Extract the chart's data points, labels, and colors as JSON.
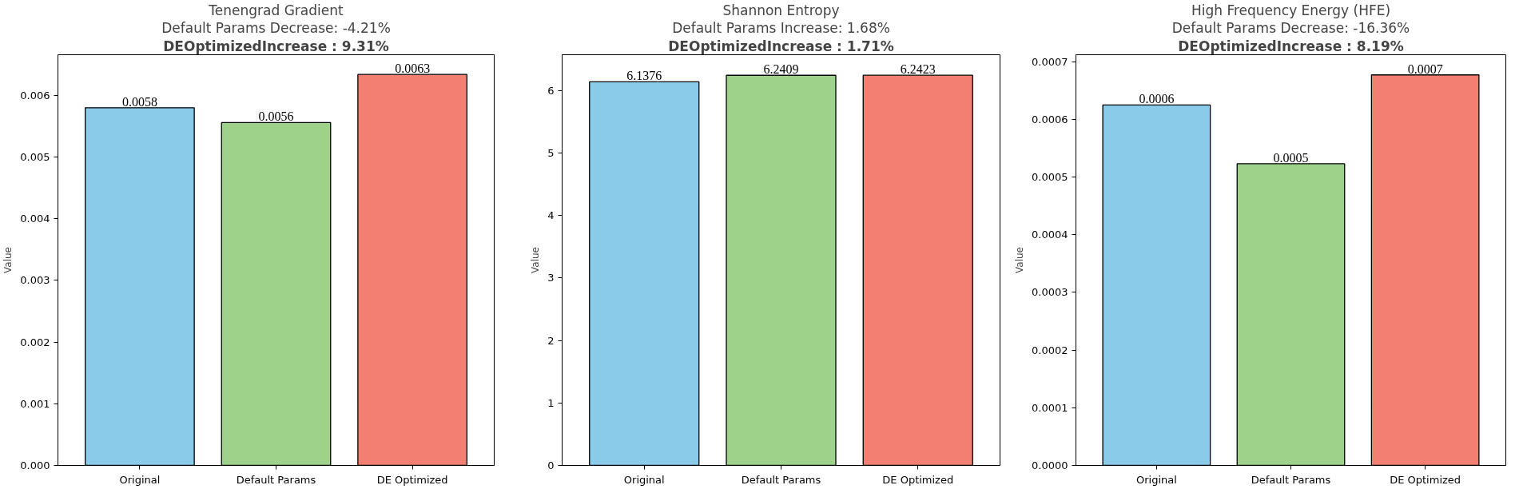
{
  "chart_data": [
    {
      "type": "bar",
      "title": "Tenengrad Gradient",
      "subtitle": "Default Params Decrease: -4.21%",
      "annotations": [
        "DEOptimizedIncrease : 9.31%"
      ],
      "ylabel": "Value",
      "categories": [
        "Original",
        "Default Params",
        "DE Optimized"
      ],
      "values": [
        0.0058,
        0.00556,
        0.00634
      ],
      "value_labels": [
        "0.0058",
        "0.0056",
        "0.0063"
      ],
      "colors": [
        "#89cbe8",
        "#9ed18a",
        "#f28072"
      ],
      "ylim": [
        0,
        0.00666
      ],
      "yticks": [
        {
          "value": 0,
          "label": "0.000"
        },
        {
          "value": 0.001,
          "label": "0.001"
        },
        {
          "value": 0.002,
          "label": "0.002"
        },
        {
          "value": 0.003,
          "label": "0.003"
        },
        {
          "value": 0.004,
          "label": "0.004"
        },
        {
          "value": 0.005,
          "label": "0.005"
        },
        {
          "value": 0.006,
          "label": "0.006"
        }
      ],
      "grid": false
    },
    {
      "type": "bar",
      "title": "Shannon Entropy",
      "subtitle": "Default Params Increase: 1.68%",
      "annotations": [
        "DEOptimizedIncrease : 1.71%"
      ],
      "ylabel": "Value",
      "categories": [
        "Original",
        "Default Params",
        "DE Optimized"
      ],
      "values": [
        6.1376,
        6.2409,
        6.2423
      ],
      "data_labels": true,
      "colors": [
        "#89cbe8",
        "#9ed18a",
        "#f28072"
      ],
      "ylim": [
        0,
        6.57
      ],
      "yticks": [
        0,
        1,
        2,
        3,
        4,
        5,
        6
      ],
      "grid": false
    },
    {
      "type": "bar",
      "title": "High Frequency Energy (HFE)",
      "subtitle": "Default Params Decrease: -16.36%",
      "annotations": [
        "DEOptimizedIncrease : 8.19%"
      ],
      "ylabel": "Value",
      "categories": [
        "Original",
        "Default Params",
        "DE Optimized"
      ],
      "values": [
        0.000625,
        0.000523,
        0.000677
      ],
      "value_labels": [
        "0.0006",
        "0.0005",
        "0.0007"
      ],
      "colors": [
        "#89cbe8",
        "#9ed18a",
        "#f28072"
      ],
      "ylim": [
        0,
        0.000712
      ],
      "yticks": [
        {
          "value": 0,
          "label": "0.0000"
        },
        {
          "value": 0.0001,
          "label": "0.0001"
        },
        {
          "value": 0.0002,
          "label": "0.0002"
        },
        {
          "value": 0.0003,
          "label": "0.0003"
        },
        {
          "value": 0.0004,
          "label": "0.0004"
        },
        {
          "value": 0.0005,
          "label": "0.0005"
        },
        {
          "value": 0.0006,
          "label": "0.0006"
        },
        {
          "value": 0.0007,
          "label": "0.0007"
        }
      ],
      "grid": false
    }
  ]
}
